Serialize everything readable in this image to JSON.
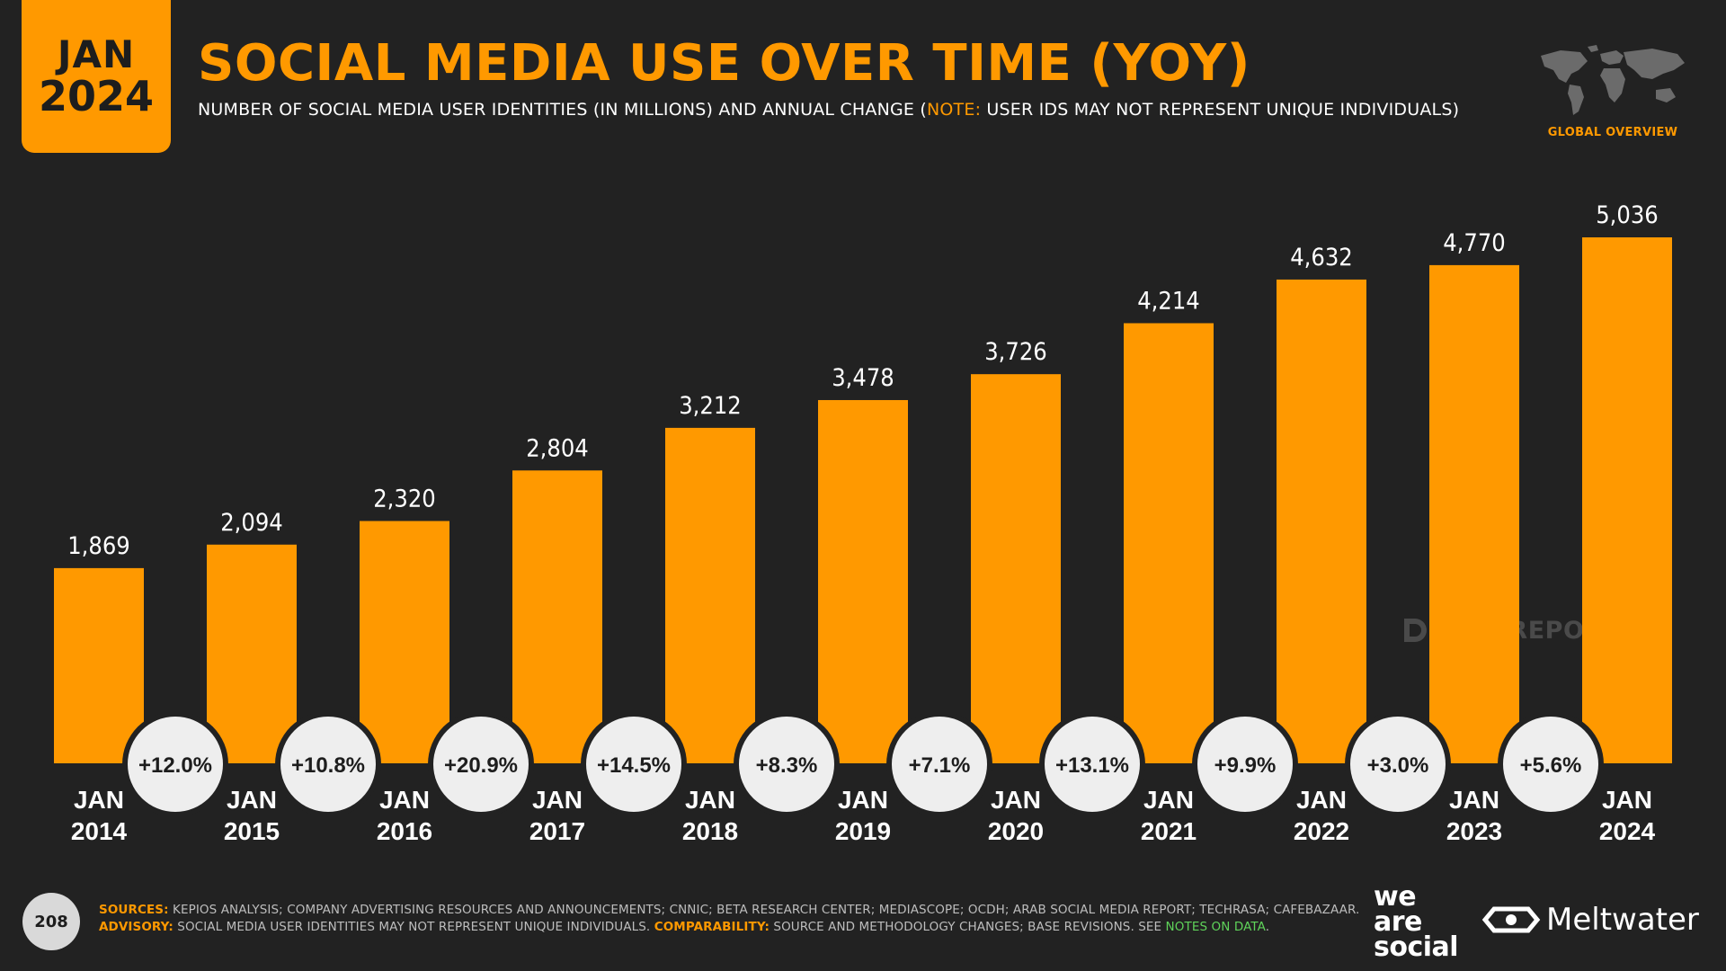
{
  "badge": {
    "month": "JAN",
    "year": "2024"
  },
  "title": "SOCIAL MEDIA USE OVER TIME (YOY)",
  "subtitle": {
    "main": "NUMBER OF SOCIAL MEDIA USER IDENTITIES (IN MILLIONS) AND ANNUAL CHANGE (",
    "note_label": "NOTE:",
    "note_text": " USER IDS MAY NOT REPRESENT UNIQUE INDIVIDUALS)"
  },
  "header_right": {
    "label": "GLOBAL OVERVIEW",
    "icon": "world-map-icon"
  },
  "watermark": {
    "text": "DATAREPORTAL",
    "icon": "datareportal-logo-icon"
  },
  "chart_data": {
    "type": "bar",
    "categories": [
      [
        "JAN",
        "2014"
      ],
      [
        "JAN",
        "2015"
      ],
      [
        "JAN",
        "2016"
      ],
      [
        "JAN",
        "2017"
      ],
      [
        "JAN",
        "2018"
      ],
      [
        "JAN",
        "2019"
      ],
      [
        "JAN",
        "2020"
      ],
      [
        "JAN",
        "2021"
      ],
      [
        "JAN",
        "2022"
      ],
      [
        "JAN",
        "2023"
      ],
      [
        "JAN",
        "2024"
      ]
    ],
    "values": [
      1869,
      2094,
      2320,
      2804,
      3212,
      3478,
      3726,
      4214,
      4632,
      4770,
      5036
    ],
    "value_labels": [
      "1,869",
      "2,094",
      "2,320",
      "2,804",
      "3,212",
      "3,478",
      "3,726",
      "4,214",
      "4,632",
      "4,770",
      "5,036"
    ],
    "annual_change": [
      "+12.0%",
      "+10.8%",
      "+20.9%",
      "+14.5%",
      "+8.3%",
      "+7.1%",
      "+13.1%",
      "+9.9%",
      "+3.0%",
      "+5.6%"
    ],
    "ylim": [
      0,
      5036
    ],
    "grid": false,
    "colors": {
      "bar": "#ff9900",
      "change_bubble": "#eeeeee",
      "background": "#222222"
    }
  },
  "footer": {
    "page_number": "208",
    "sources_label": "SOURCES:",
    "sources_text": " KEPIOS ANALYSIS; COMPANY ADVERTISING RESOURCES AND ANNOUNCEMENTS; CNNIC; BETA RESEARCH CENTER; MEDIASCOPE; OCDH; ARAB SOCIAL MEDIA REPORT; TECHRASA; CAFEBAZAAR.",
    "advisory_label": "ADVISORY:",
    "advisory_text": " SOCIAL MEDIA USER IDENTITIES MAY NOT REPRESENT UNIQUE INDIVIDUALS. ",
    "comparability_label": "COMPARABILITY:",
    "comparability_text": " SOURCE AND METHODOLOGY CHANGES; BASE REVISIONS. SEE ",
    "notes_link": "NOTES ON DATA",
    "end_punct": ".",
    "brand1": [
      "we",
      "are",
      "social"
    ],
    "brand2": "Meltwater",
    "brand2_icon": "meltwater-logo-icon"
  }
}
